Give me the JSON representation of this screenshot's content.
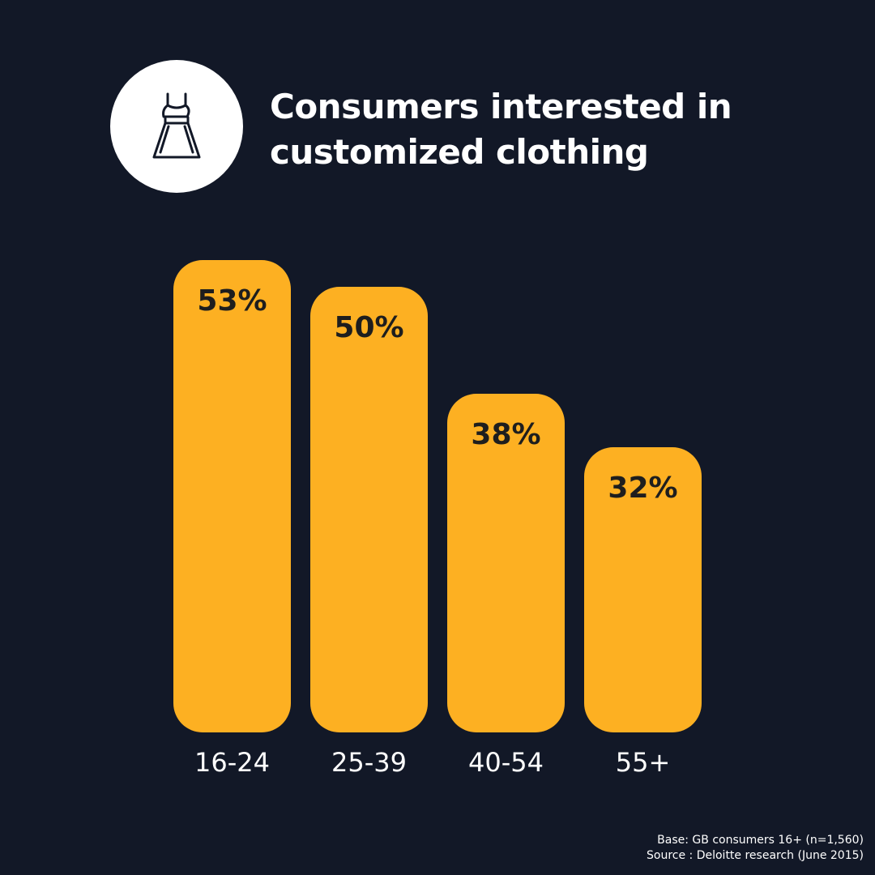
{
  "title": {
    "line1": "Consumers interested in",
    "line2": "customized clothing"
  },
  "icon": "dress-icon",
  "colors": {
    "background": "#121827",
    "bar": "#FDB022",
    "bar_label": "#1E1E1E",
    "text": "#FFFFFF",
    "icon_circle": "#FFFFFF"
  },
  "chart_data": {
    "type": "bar",
    "categories": [
      "16-24",
      "25-39",
      "40-54",
      "55+"
    ],
    "values": [
      53,
      50,
      38,
      32
    ],
    "value_labels": [
      "53%",
      "50%",
      "38%",
      "32%"
    ],
    "title": "Consumers interested in customized clothing",
    "xlabel": "",
    "ylabel": "",
    "grid": false,
    "legend": "none"
  },
  "footnote": {
    "base": "Base: GB consumers 16+ (n=1,560)",
    "source": "Source : Deloitte research (June 2015)"
  }
}
